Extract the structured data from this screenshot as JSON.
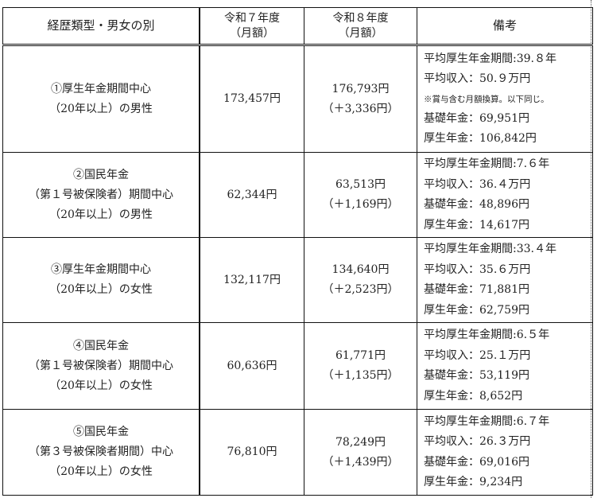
{
  "headers": {
    "category": "経歴類型・男女の別",
    "r7": [
      "令和７年度",
      "（月額）"
    ],
    "r8": [
      "令和８年度",
      "（月額）"
    ],
    "notes": "備考"
  },
  "rows": [
    {
      "category": [
        "①厚生年金期間中心",
        "（20年以上）の男性"
      ],
      "r7": "173,457円",
      "r8": [
        "176,793円",
        "（＋3,336円）"
      ],
      "notes": [
        "平均厚生年金期間:39.８年",
        "平均収入：50.９万円",
        "※賞与含む月額換算。以下同じ。",
        "基礎年金：69,951円",
        "厚生年金：106,842円"
      ]
    },
    {
      "category": [
        "②国民年金",
        "（第１号被保険者）期間中心",
        "（20年以上）の男性"
      ],
      "r7": "62,344円",
      "r8": [
        "63,513円",
        "（＋1,169円）"
      ],
      "notes": [
        "平均厚生年金期間:7.６年",
        "平均収入：36.４万円",
        "基礎年金：48,896円",
        "厚生年金：14,617円"
      ]
    },
    {
      "category": [
        "③厚生年金期間中心",
        "（20年以上）の女性"
      ],
      "r7": "132,117円",
      "r8": [
        "134,640円",
        "（＋2,523円）"
      ],
      "notes": [
        "平均厚生年金期間:33.４年",
        "平均収入：35.６万円",
        "基礎年金：71,881円",
        "厚生年金：62,759円"
      ]
    },
    {
      "category": [
        "④国民年金",
        "（第１号被保険者）期間中心",
        "（20年以上）の女性"
      ],
      "r7": "60,636円",
      "r8": [
        "61,771円",
        "（＋1,135円）"
      ],
      "notes": [
        "平均厚生年金期間:6.５年",
        "平均収入：25.１万円",
        "基礎年金：53,119円",
        "厚生年金：8,652円"
      ]
    },
    {
      "category": [
        "⑤国民年金",
        "（第３号被保険者期間）中心",
        "（20年以上）の女性"
      ],
      "r7": "76,810円",
      "r8": [
        "78,249円",
        "（＋1,439円）"
      ],
      "notes": [
        "平均厚生年金期間:6.７年",
        "平均収入：26.３万円",
        "基礎年金：69,016円",
        "厚生年金：9,234円"
      ]
    }
  ]
}
